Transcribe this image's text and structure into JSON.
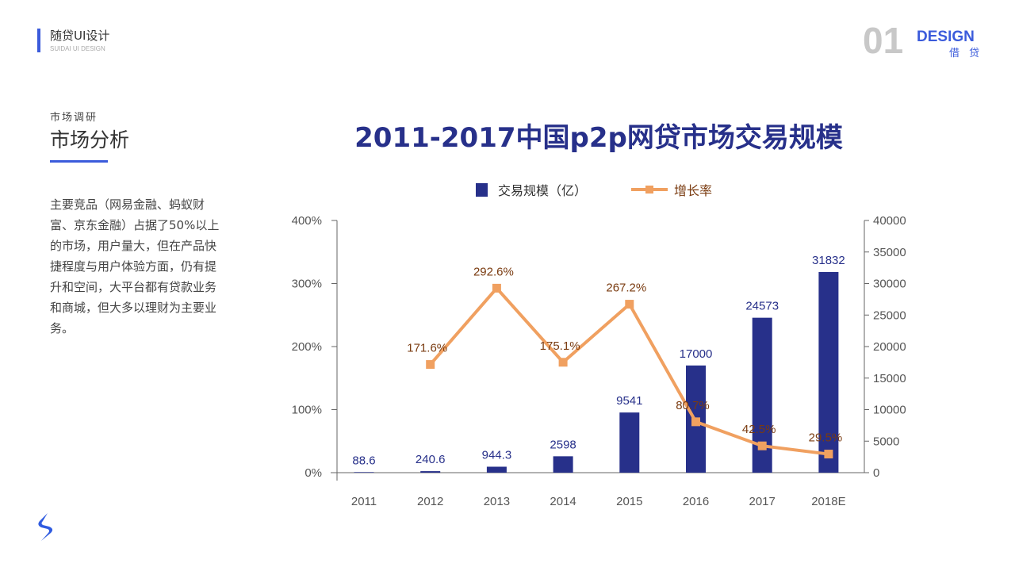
{
  "header": {
    "brand_title": "随贷UI设计",
    "brand_sub": "SUIDAI UI DESIGN",
    "page_number": "01",
    "design_label": "DESIGN",
    "design_sub": "借 贷"
  },
  "section": {
    "subtitle": "市场调研",
    "title": "市场分析",
    "description": "主要竞品（网易金融、蚂蚁财富、京东金融）占据了50%以上的市场，用户量大，但在产品快捷程度与用户体验方面，仍有提升和空间，大平台都有贷款业务和商城，但大多以理财为主要业务。"
  },
  "chart_data": {
    "type": "bar+line",
    "title": "2011-2017中国p2p网贷市场交易规模",
    "categories": [
      "2011",
      "2012",
      "2013",
      "2014",
      "2015",
      "2016",
      "2017",
      "2018E"
    ],
    "series": [
      {
        "name": "交易规模（亿）",
        "type": "bar",
        "axis": "right",
        "color": "#27308a",
        "values": [
          88.6,
          240.6,
          944.3,
          2598,
          9541,
          17000,
          24573,
          31832
        ],
        "labels": [
          "88.6",
          "240.6",
          "944.3",
          "2598",
          "9541",
          "17000",
          "24573",
          "31832"
        ]
      },
      {
        "name": "增长率",
        "type": "line",
        "axis": "left",
        "color": "#f0a060",
        "values": [
          null,
          171.6,
          292.6,
          175.1,
          267.2,
          80.7,
          42.5,
          29.5
        ],
        "labels": [
          "",
          "171.6%",
          "292.6%",
          "175.1%",
          "267.2%",
          "80.7%",
          "42.5%",
          "29.5%"
        ]
      }
    ],
    "left_axis": {
      "range": [
        0,
        400
      ],
      "ticks": [
        "0%",
        "100%",
        "200%",
        "300%",
        "400%"
      ]
    },
    "right_axis": {
      "range": [
        0,
        40000
      ],
      "ticks": [
        "0",
        "5000",
        "10000",
        "15000",
        "20000",
        "25000",
        "30000",
        "35000",
        "40000"
      ]
    },
    "legend": "top",
    "grid": false
  }
}
